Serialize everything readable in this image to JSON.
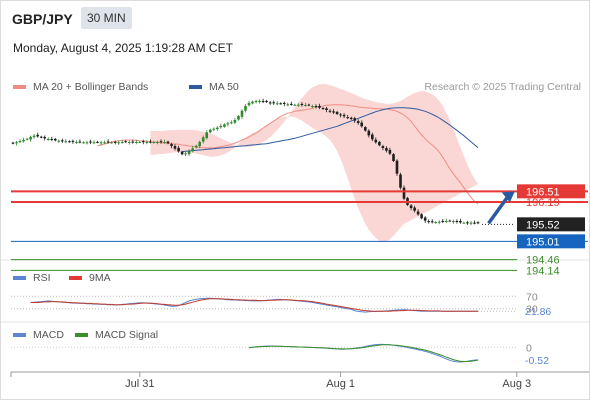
{
  "header": {
    "symbol": "GBP/JPY",
    "timeframe": "30 MIN",
    "timestamp": "Monday, August 4, 2025 1:19:28 AM CET"
  },
  "chart_data": [
    {
      "type": "line",
      "panel": "price",
      "legend": [
        {
          "label": "MA 20 + Bollinger Bands",
          "color": "#f28b82"
        },
        {
          "label": "MA 50",
          "color": "#2c5aa0"
        }
      ],
      "credit": "Research © 2025 Trading Central",
      "ylim": [
        194.0,
        199.4
      ],
      "x_ticks": [
        {
          "i": 36,
          "label": "Jul 31"
        },
        {
          "i": 93,
          "label": "Aug 1"
        },
        {
          "i": 143,
          "label": "Aug 3"
        }
      ],
      "close": [
        197.95,
        197.98,
        198.02,
        198.05,
        198.09,
        198.14,
        198.18,
        198.16,
        198.13,
        198.1,
        198.08,
        198.06,
        198.04,
        198.03,
        198.02,
        198.01,
        198.0,
        198.0,
        197.99,
        197.99,
        197.98,
        197.98,
        197.98,
        197.98,
        197.98,
        197.98,
        197.98,
        197.98,
        197.98,
        197.98,
        197.98,
        197.99,
        197.99,
        197.99,
        197.99,
        197.99,
        197.99,
        197.99,
        197.99,
        197.99,
        197.99,
        197.99,
        197.99,
        197.99,
        197.95,
        197.87,
        197.79,
        197.71,
        197.62,
        197.65,
        197.72,
        197.8,
        197.88,
        197.99,
        198.13,
        198.28,
        198.36,
        198.39,
        198.42,
        198.47,
        198.52,
        198.55,
        198.58,
        198.65,
        198.77,
        198.93,
        199.07,
        199.16,
        199.2,
        199.22,
        199.22,
        199.2,
        199.19,
        199.17,
        199.16,
        199.15,
        199.14,
        199.13,
        199.12,
        199.12,
        199.11,
        199.11,
        199.1,
        199.1,
        199.09,
        199.07,
        199.05,
        199.02,
        198.99,
        198.95,
        198.91,
        198.87,
        198.83,
        198.79,
        198.76,
        198.72,
        198.68,
        198.63,
        198.56,
        198.46,
        198.33,
        198.19,
        198.07,
        197.98,
        197.89,
        197.81,
        197.73,
        197.64,
        197.42,
        197.04,
        196.62,
        196.29,
        196.1,
        196.01,
        195.93,
        195.82,
        195.7,
        195.63,
        195.6,
        195.59,
        195.59,
        195.6,
        195.61,
        195.62,
        195.63,
        195.62,
        195.6,
        195.58,
        195.57,
        195.57,
        195.57,
        195.56,
        195.55
      ],
      "ma20": [
        197.88,
        197.9,
        197.93,
        197.96,
        197.99,
        198.01,
        198.03,
        198.04,
        198.05,
        198.05,
        198.05,
        198.04,
        198.03,
        198.02,
        198.01,
        198.0,
        197.99,
        197.98,
        197.97,
        197.96,
        197.95,
        197.94,
        197.93,
        197.92,
        197.9,
        197.89,
        197.87,
        197.86,
        197.84,
        197.83,
        197.82,
        197.81,
        197.81,
        197.82,
        197.83,
        197.85,
        197.87,
        197.89,
        197.92,
        197.96,
        198.0,
        198.05,
        198.09,
        198.14,
        198.2,
        198.26,
        198.33,
        198.41,
        198.48,
        198.55,
        198.62,
        198.69,
        198.76,
        198.81,
        198.85,
        198.88,
        198.91,
        198.93,
        198.94,
        198.96,
        198.98,
        199.0,
        199.03,
        199.05,
        199.07,
        199.09,
        199.1,
        199.11,
        199.11,
        199.11,
        199.1,
        199.09,
        199.07,
        199.06,
        199.04,
        199.03,
        199.02,
        199.01,
        199.0,
        198.99,
        198.99,
        198.98,
        198.98,
        198.96,
        198.94,
        198.91,
        198.86,
        198.8,
        198.72,
        198.61,
        198.47,
        198.33,
        198.2,
        198.09,
        197.98,
        197.9,
        197.81,
        197.69,
        197.53,
        197.36,
        197.19,
        197.04,
        196.9,
        196.77,
        196.62,
        196.47,
        196.33,
        196.21,
        196.13
      ],
      "bb_upper": [
        198.33,
        198.32,
        198.32,
        198.32,
        198.33,
        198.34,
        198.35,
        198.35,
        198.36,
        198.36,
        198.36,
        198.36,
        198.35,
        198.34,
        198.32,
        198.3,
        198.27,
        198.24,
        198.2,
        198.15,
        198.1,
        198.05,
        198.0,
        197.95,
        197.91,
        197.88,
        197.86,
        197.85,
        197.85,
        197.86,
        197.89,
        197.93,
        197.99,
        198.06,
        198.14,
        198.24,
        198.35,
        198.47,
        198.6,
        198.74,
        198.88,
        199.03,
        199.17,
        199.31,
        199.43,
        199.54,
        199.63,
        199.68,
        199.72,
        199.73,
        199.72,
        199.69,
        199.66,
        199.62,
        199.58,
        199.55,
        199.5,
        199.46,
        199.41,
        199.37,
        199.32,
        199.28,
        199.25,
        199.22,
        199.19,
        199.17,
        199.15,
        199.14,
        199.14,
        199.15,
        199.18,
        199.22,
        199.28,
        199.35,
        199.41,
        199.46,
        199.5,
        199.52,
        199.51,
        199.47,
        199.42,
        199.34,
        199.22,
        199.07,
        198.87,
        198.64,
        198.38,
        198.11,
        197.83,
        197.56,
        197.31,
        197.08,
        196.89,
        196.73
      ],
      "bb_lower": [
        197.6,
        197.61,
        197.62,
        197.63,
        197.64,
        197.65,
        197.67,
        197.68,
        197.69,
        197.69,
        197.69,
        197.68,
        197.66,
        197.64,
        197.62,
        197.59,
        197.57,
        197.55,
        197.55,
        197.56,
        197.59,
        197.62,
        197.68,
        197.75,
        197.83,
        197.93,
        198.03,
        198.12,
        198.19,
        198.25,
        198.3,
        198.36,
        198.42,
        198.49,
        198.57,
        198.63,
        198.68,
        198.72,
        198.74,
        198.75,
        198.75,
        198.73,
        198.69,
        198.63,
        198.56,
        198.49,
        198.42,
        198.35,
        198.29,
        198.23,
        198.15,
        198.05,
        197.91,
        197.72,
        197.48,
        197.2,
        196.9,
        196.59,
        196.29,
        196.01,
        195.76,
        195.54,
        195.36,
        195.22,
        195.11,
        195.03,
        194.99,
        195.0,
        195.07,
        195.18,
        195.3,
        195.42,
        195.53
      ],
      "ma50": [
        197.7,
        197.71,
        197.72,
        197.73,
        197.74,
        197.75,
        197.76,
        197.77,
        197.78,
        197.79,
        197.8,
        197.81,
        197.82,
        197.83,
        197.84,
        197.85,
        197.86,
        197.87,
        197.88,
        197.89,
        197.9,
        197.91,
        197.92,
        197.93,
        197.94,
        197.96,
        197.98,
        198.0,
        198.02,
        198.04,
        198.06,
        198.08,
        198.1,
        198.13,
        198.16,
        198.19,
        198.22,
        198.25,
        198.28,
        198.31,
        198.34,
        198.37,
        198.4,
        198.43,
        198.46,
        198.5,
        198.54,
        198.58,
        198.62,
        198.66,
        198.7,
        198.74,
        198.78,
        198.82,
        198.86,
        198.9,
        198.93,
        198.96,
        198.98,
        199.0,
        199.01,
        199.02,
        199.02,
        199.02,
        199.01,
        199.0,
        198.99,
        198.97,
        198.94,
        198.91,
        198.87,
        198.82,
        198.77,
        198.71,
        198.64,
        198.57,
        198.5,
        198.42,
        198.34,
        198.26,
        198.18,
        198.09,
        198.0,
        197.91,
        197.82
      ],
      "levels": [
        {
          "value": 196.51,
          "label": "196.51",
          "color": "#e53935",
          "style": "solid-double"
        },
        {
          "value": 196.19,
          "label": "196.19",
          "color": "#e53935",
          "style": "solid-double"
        },
        {
          "value": 195.52,
          "label": "195.52",
          "color": "#222222",
          "style": "dotted-current"
        },
        {
          "value": 195.01,
          "label": "195.01",
          "color": "#1565c0",
          "style": "solid"
        },
        {
          "value": 194.46,
          "label": "194.46",
          "color": "#3a8f2a",
          "style": "solid"
        },
        {
          "value": 194.14,
          "label": "194.14",
          "color": "#3a8f2a",
          "style": "solid"
        }
      ],
      "scenario_arrow": {
        "from": [
          135,
          195.55
        ],
        "to": [
          151,
          196.51
        ],
        "color": "#2c5aa0"
      }
    },
    {
      "type": "line",
      "panel": "rsi",
      "legend": [
        {
          "label": "RSI",
          "color": "#5b86d4"
        },
        {
          "label": "9MA",
          "color": "#e53935"
        }
      ],
      "ylim": [
        0,
        100
      ],
      "ticks": [
        {
          "value": 70,
          "label": "70"
        },
        {
          "value": 30,
          "label": "30"
        }
      ],
      "current_label": "21.86",
      "rsi": [
        50,
        51,
        52,
        53,
        54,
        55,
        54,
        53,
        52,
        51,
        50,
        49,
        48,
        48,
        47,
        47,
        46,
        46,
        45,
        45,
        44,
        44,
        43,
        43,
        42,
        43,
        44,
        45,
        46,
        47,
        48,
        49,
        49,
        48,
        47,
        46,
        45,
        44,
        42,
        40,
        38,
        38,
        40,
        45,
        50,
        55,
        58,
        60,
        62,
        63,
        64,
        64,
        63,
        62,
        61,
        60,
        59,
        58,
        58,
        57,
        57,
        56,
        56,
        55,
        55,
        55,
        56,
        57,
        58,
        59,
        60,
        60,
        59,
        58,
        57,
        56,
        55,
        54,
        53,
        52,
        50,
        48,
        46,
        44,
        42,
        40,
        38,
        36,
        34,
        32,
        30,
        28,
        24,
        21,
        20,
        19,
        20,
        21,
        21,
        22,
        22,
        23,
        24,
        25,
        26,
        26,
        27,
        26,
        25,
        24,
        23,
        22,
        22,
        22,
        22,
        22,
        22,
        22,
        22,
        22,
        22,
        22,
        22,
        22,
        22,
        22,
        22,
        21.86
      ],
      "ma9": [
        50,
        50,
        50,
        51,
        52,
        52,
        53,
        53,
        52,
        52,
        51,
        50,
        49,
        49,
        48,
        48,
        47,
        47,
        46,
        46,
        45,
        45,
        44,
        44,
        43,
        43,
        43,
        44,
        45,
        45,
        46,
        47,
        48,
        48,
        48,
        47,
        46,
        45,
        44,
        43,
        42,
        41,
        41,
        43,
        45,
        48,
        51,
        54,
        57,
        59,
        61,
        62,
        62,
        62,
        62,
        61,
        61,
        60,
        59,
        59,
        58,
        58,
        57,
        57,
        57,
        56,
        56,
        56,
        57,
        57,
        58,
        58,
        59,
        59,
        58,
        57,
        56,
        56,
        55,
        54,
        53,
        51,
        49,
        47,
        45,
        43,
        41,
        39,
        37,
        35,
        33,
        31,
        29,
        27,
        25,
        24,
        23,
        22,
        22,
        22,
        22,
        22,
        22,
        23,
        23,
        24,
        24,
        25,
        25,
        25,
        25,
        24,
        24,
        23,
        23,
        23,
        23,
        22,
        22,
        22,
        22,
        22,
        22,
        22,
        22,
        22,
        22,
        22
      ]
    },
    {
      "type": "line",
      "panel": "macd",
      "legend": [
        {
          "label": "MACD",
          "color": "#5b86d4"
        },
        {
          "label": "MACD Signal",
          "color": "#3a8f2a"
        }
      ],
      "ylim": [
        -0.9,
        0.3
      ],
      "ticks": [
        {
          "value": 0,
          "label": "0"
        }
      ],
      "current_label": "-0.52",
      "macd": [
        -0.02,
        0.0,
        0.02,
        0.03,
        0.04,
        0.05,
        0.05,
        0.05,
        0.04,
        0.04,
        0.03,
        0.03,
        0.02,
        0.02,
        0.01,
        0.01,
        0.0,
        0.0,
        -0.01,
        -0.02,
        -0.02,
        -0.03,
        -0.04,
        -0.05,
        -0.06,
        -0.07,
        -0.08,
        -0.08,
        -0.07,
        -0.06,
        -0.04,
        -0.02,
        0.0,
        0.03,
        0.06,
        0.09,
        0.11,
        0.12,
        0.12,
        0.11,
        0.1,
        0.08,
        0.06,
        0.04,
        0.02,
        -0.01,
        -0.04,
        -0.07,
        -0.1,
        -0.13,
        -0.17,
        -0.21,
        -0.26,
        -0.31,
        -0.36,
        -0.42,
        -0.48,
        -0.54,
        -0.58,
        -0.6,
        -0.61,
        -0.6,
        -0.58,
        -0.55,
        -0.53,
        -0.52
      ],
      "signal": [
        -0.01,
        0.0,
        0.01,
        0.02,
        0.03,
        0.03,
        0.04,
        0.04,
        0.04,
        0.04,
        0.03,
        0.03,
        0.02,
        0.02,
        0.01,
        0.01,
        0.0,
        0.0,
        -0.01,
        -0.01,
        -0.02,
        -0.02,
        -0.03,
        -0.04,
        -0.05,
        -0.06,
        -0.06,
        -0.07,
        -0.07,
        -0.06,
        -0.05,
        -0.04,
        -0.02,
        0.0,
        0.03,
        0.05,
        0.07,
        0.09,
        0.1,
        0.1,
        0.1,
        0.09,
        0.08,
        0.06,
        0.04,
        0.02,
        0.0,
        -0.03,
        -0.06,
        -0.09,
        -0.12,
        -0.16,
        -0.2,
        -0.25,
        -0.3,
        -0.35,
        -0.41,
        -0.46,
        -0.51,
        -0.55,
        -0.58,
        -0.59,
        -0.59,
        -0.58,
        -0.56,
        -0.54
      ]
    }
  ]
}
